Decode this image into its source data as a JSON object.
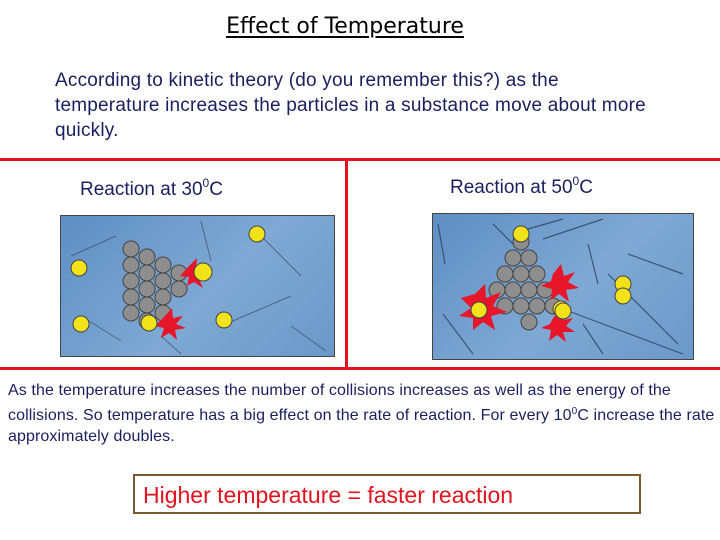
{
  "title": "Effect of Temperature",
  "intro_text": "According to kinetic theory (do you remember this?) as the temperature increases the particles in a substance move about more quickly.",
  "left_panel": {
    "label_prefix": "Reaction at 30",
    "label_superscript": "0",
    "label_suffix": "C",
    "image_description_icon": "particle-collision-low-temp"
  },
  "right_panel": {
    "label_prefix": "Reaction at 50",
    "label_superscript": "0",
    "label_suffix": "C",
    "image_description_icon": "particle-collision-high-temp"
  },
  "body": {
    "part1": "As the temperature increases the number of collisions increases as well as the energy of the collisions. So temperature has a big effect on the rate of reaction. For every 10",
    "superscript": "0",
    "part2": "C increase the rate approximately doubles."
  },
  "conclusion": "Higher temperature = faster reaction",
  "colors": {
    "divider": "#e0131e",
    "text": "#1a1f5e",
    "conclusion_text": "#e0131e",
    "particle_grey": "#8e8e8e",
    "particle_yellow": "#f2e21a",
    "collision_burst": "#e8162a"
  }
}
